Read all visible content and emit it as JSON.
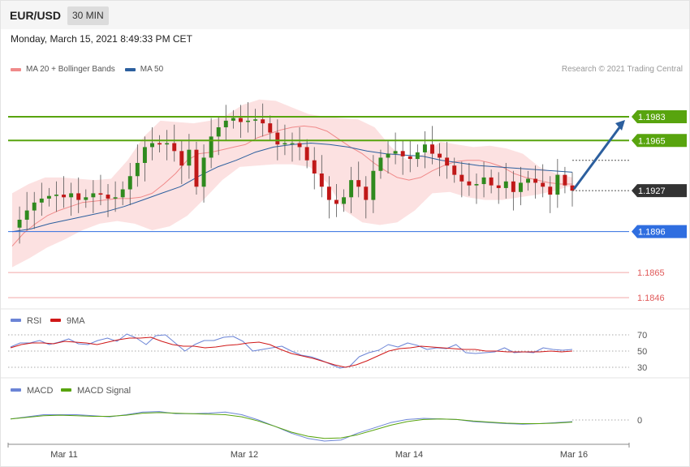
{
  "header": {
    "symbol": "EUR/USD",
    "timeframe": "30 MIN"
  },
  "datetime": "Monday, March 15, 2021 8:49:33 PM CET",
  "legend": {
    "ma20_bb": {
      "label": "MA 20 + Bollinger Bands",
      "color": "#f08a8a"
    },
    "ma50": {
      "label": "MA 50",
      "color": "#2c5f9e"
    }
  },
  "copyright": "Research © 2021 Trading Central",
  "levels": [
    {
      "value": "1.1983",
      "kind": "resistance",
      "color": "#58a40e"
    },
    {
      "value": "1.1965",
      "kind": "resistance",
      "color": "#58a40e"
    },
    {
      "value": "1.1927",
      "kind": "current",
      "color": "#333333"
    },
    {
      "value": "1.1896",
      "kind": "pivot",
      "color": "#2f6ee0"
    },
    {
      "value": "1.1865",
      "kind": "support",
      "color": "#e05a5a"
    },
    {
      "value": "1.1846",
      "kind": "support",
      "color": "#e05a5a"
    }
  ],
  "rsi": {
    "label": "RSI",
    "ma_label": "9MA",
    "color": "#6b84d6",
    "ma_color": "#d01818",
    "levels": [
      "70",
      "50",
      "30"
    ]
  },
  "macd": {
    "label": "MACD",
    "signal_label": "MACD Signal",
    "color": "#6b84d6",
    "signal_color": "#58a40e",
    "levels": [
      "0"
    ]
  },
  "x_axis": {
    "labels": [
      "Mar 11",
      "Mar 12",
      "Mar 14",
      "Mar 16"
    ]
  },
  "chart_data": [
    {
      "type": "candlestick",
      "title": "EUR/USD",
      "ylim": [
        1.1835,
        1.201
      ],
      "x_labels": [
        "Mar 11",
        "Mar 12",
        "Mar 14",
        "Mar 16"
      ],
      "annotations": [
        "arrow toward 1.1983"
      ],
      "path_close": [
        1.1899,
        1.1905,
        1.1912,
        1.1918,
        1.1921,
        1.1923,
        1.1924,
        1.1922,
        1.1925,
        1.192,
        1.1922,
        1.1925,
        1.1924,
        1.1921,
        1.1922,
        1.1928,
        1.1938,
        1.1948,
        1.196,
        1.1963,
        1.1962,
        1.1963,
        1.1957,
        1.1946,
        1.1958,
        1.193,
        1.1952,
        1.1968,
        1.1975,
        1.198,
        1.1982,
        1.1979,
        1.198,
        1.1981,
        1.1978,
        1.1971,
        1.1962,
        1.1963,
        1.1963,
        1.196,
        1.195,
        1.194,
        1.193,
        1.192,
        1.1917,
        1.1922,
        1.1935,
        1.193,
        1.192,
        1.1942,
        1.1952,
        1.1955,
        1.1957,
        1.1953,
        1.1951,
        1.1956,
        1.1962,
        1.1955,
        1.1952,
        1.1946,
        1.1939,
        1.1934,
        1.1931,
        1.1932,
        1.1937,
        1.1931,
        1.1929,
        1.1934,
        1.1926,
        1.1933,
        1.1936,
        1.1933,
        1.193,
        1.1924,
        1.1939,
        1.1931,
        1.1927
      ],
      "ma20_close": [
        1.1885,
        1.1895,
        1.1902,
        1.1908,
        1.1912,
        1.1915,
        1.1918,
        1.1919,
        1.192,
        1.1921,
        1.1921,
        1.1922,
        1.1925,
        1.1932,
        1.194,
        1.195,
        1.1955,
        1.1956,
        1.1958,
        1.196,
        1.1962,
        1.1967,
        1.197,
        1.1973,
        1.1975,
        1.1976,
        1.1975,
        1.1972,
        1.1966,
        1.196,
        1.1955,
        1.1948,
        1.1942,
        1.1937,
        1.1935,
        1.1937,
        1.1942,
        1.1946,
        1.1949,
        1.195,
        1.195,
        1.1948,
        1.1945,
        1.194,
        1.1937,
        1.1935,
        1.1933,
        1.1932,
        1.1932
      ],
      "bb_upper": [
        1.1925,
        1.1932,
        1.1937,
        1.1937,
        1.1936,
        1.1935,
        1.1936,
        1.195,
        1.1968,
        1.198,
        1.1979,
        1.1978,
        1.198,
        1.1984,
        1.1992,
        1.1996,
        1.1995,
        1.199,
        1.1985,
        1.1983,
        1.1982,
        1.1981,
        1.1975,
        1.196,
        1.195,
        1.1955,
        1.1964,
        1.1962,
        1.196,
        1.1961,
        1.1959,
        1.1955,
        1.1945,
        1.194,
        1.1937
      ],
      "bb_lower": [
        1.1869,
        1.1876,
        1.1884,
        1.189,
        1.1897,
        1.1902,
        1.1904,
        1.1902,
        1.1897,
        1.19,
        1.1908,
        1.1921,
        1.1935,
        1.1945,
        1.1946,
        1.1947,
        1.1947,
        1.1945,
        1.1933,
        1.1912,
        1.1903,
        1.1901,
        1.1903,
        1.1912,
        1.1925,
        1.1926,
        1.1922,
        1.192,
        1.192,
        1.1922,
        1.1924,
        1.1927,
        1.1931
      ],
      "ma50_close": [
        1.1896,
        1.1898,
        1.1902,
        1.1905,
        1.1908,
        1.1911,
        1.1915,
        1.192,
        1.1925,
        1.193,
        1.1938,
        1.1945,
        1.195,
        1.1956,
        1.196,
        1.1962,
        1.1963,
        1.1962,
        1.196,
        1.1957,
        1.1955,
        1.1954,
        1.1953,
        1.195,
        1.1948,
        1.1946,
        1.1945,
        1.1944,
        1.1943,
        1.1942,
        1.1941
      ]
    },
    {
      "type": "line",
      "title": "RSI",
      "yticks": [
        70,
        50,
        30
      ],
      "series": [
        {
          "name": "RSI",
          "values": [
            55,
            60,
            60,
            63,
            58,
            61,
            65,
            59,
            58,
            63,
            66,
            62,
            71,
            66,
            58,
            69,
            70,
            60,
            50,
            58,
            63,
            63,
            67,
            68,
            62,
            50,
            52,
            54,
            56,
            50,
            45,
            43,
            39,
            34,
            29,
            31,
            43,
            48,
            51,
            58,
            55,
            60,
            57,
            52,
            54,
            53,
            58,
            48,
            47,
            48,
            49,
            54,
            48,
            49,
            48,
            54,
            52,
            51,
            52
          ]
        },
        {
          "name": "9MA",
          "values": [
            54,
            58,
            60,
            60,
            59,
            62,
            61,
            60,
            58,
            61,
            64,
            66,
            66,
            67,
            62,
            58,
            56,
            56,
            54,
            55,
            57,
            58,
            60,
            61,
            58,
            52,
            47,
            44,
            41,
            37,
            33,
            30,
            33,
            38,
            44,
            50,
            53,
            54,
            56,
            55,
            54,
            53,
            52,
            52,
            50,
            50,
            49,
            49,
            49,
            49,
            50,
            49,
            50
          ]
        }
      ]
    },
    {
      "type": "line",
      "title": "MACD",
      "yticks": [
        0
      ],
      "series": [
        {
          "name": "MACD",
          "values": [
            0.2,
            0.6,
            1.0,
            1.0,
            1.0,
            0.8,
            0.6,
            1.0,
            1.5,
            1.6,
            1.2,
            1.2,
            1.3,
            1.5,
            1.0,
            0.0,
            -1.2,
            -2.5,
            -3.5,
            -4.0,
            -3.8,
            -2.5,
            -1.5,
            -0.5,
            0.1,
            0.3,
            0.2,
            0.1,
            -0.3,
            -0.5,
            -0.7,
            -0.8,
            -0.7,
            -0.5,
            -0.3
          ]
        },
        {
          "name": "MACD Signal",
          "values": [
            0.2,
            0.5,
            0.8,
            0.9,
            0.8,
            0.7,
            0.7,
            0.9,
            1.3,
            1.4,
            1.3,
            1.2,
            1.1,
            1.0,
            0.6,
            -0.2,
            -1.2,
            -2.3,
            -3.1,
            -3.5,
            -3.4,
            -2.8,
            -1.9,
            -1.0,
            -0.3,
            0.1,
            0.2,
            0.1,
            -0.2,
            -0.4,
            -0.6,
            -0.7,
            -0.7,
            -0.6,
            -0.4
          ]
        }
      ]
    }
  ]
}
